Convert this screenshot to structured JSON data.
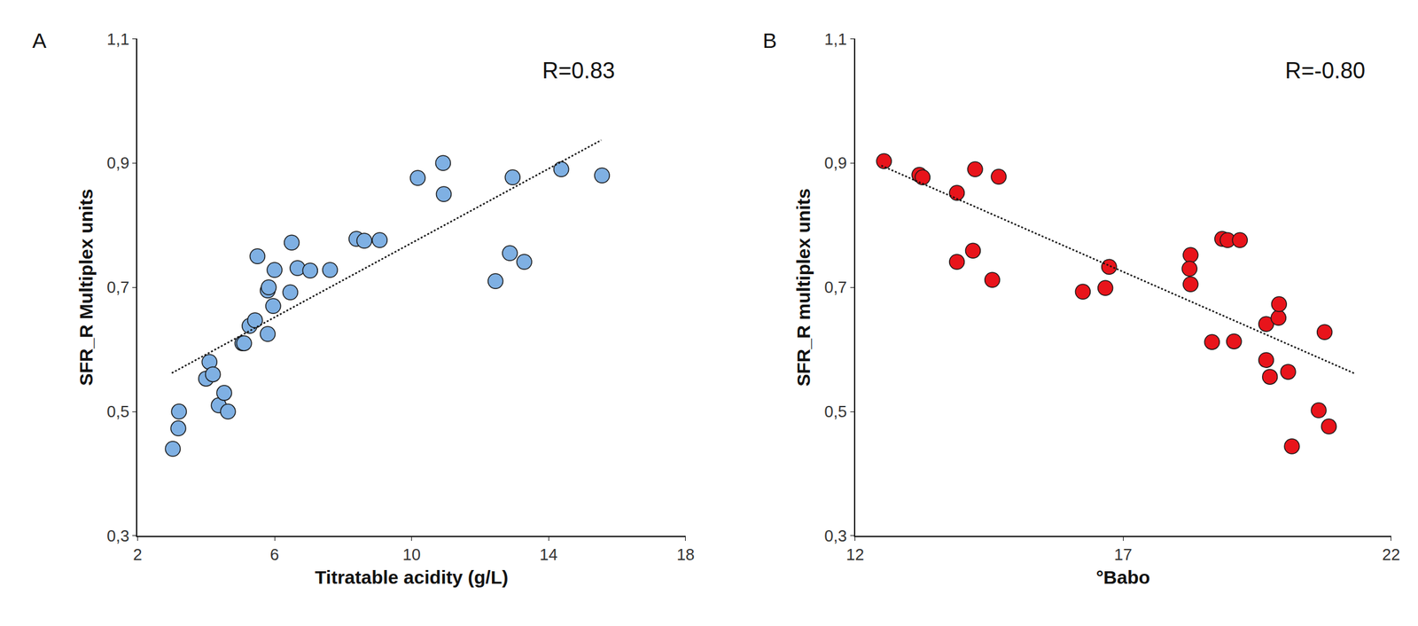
{
  "chart_data": [
    {
      "type": "scatter",
      "panel_label": "A",
      "annotation": "R=0.83",
      "x_label": "Titratable acidity (g/L)",
      "y_label": "SFR_R Multiplex units",
      "x": [
        3.03,
        3.19,
        3.21,
        4.0,
        4.1,
        4.2,
        4.37,
        4.53,
        4.64,
        5.06,
        5.11,
        5.27,
        5.43,
        5.5,
        5.8,
        5.8,
        5.83,
        5.96,
        6.0,
        6.46,
        6.5,
        6.67,
        7.04,
        7.62,
        8.39,
        8.62,
        9.07,
        10.18,
        10.92,
        10.94,
        12.45,
        12.87,
        12.95,
        13.29,
        14.37,
        15.56
      ],
      "values": [
        0.44,
        0.473,
        0.5,
        0.553,
        0.58,
        0.56,
        0.51,
        0.53,
        0.5,
        0.61,
        0.61,
        0.638,
        0.647,
        0.75,
        0.625,
        0.695,
        0.7,
        0.67,
        0.728,
        0.692,
        0.772,
        0.731,
        0.727,
        0.728,
        0.778,
        0.775,
        0.776,
        0.876,
        0.9,
        0.85,
        0.71,
        0.755,
        0.877,
        0.741,
        0.89,
        0.88
      ],
      "color": "#7fb0e3",
      "marker": "circle",
      "trendline": {
        "x": [
          3.0,
          15.54
        ],
        "values": [
          0.562,
          0.937
        ],
        "line_style": "dotted"
      },
      "xlim": [
        2,
        18
      ],
      "xticks": [
        2,
        6,
        10,
        14,
        18
      ],
      "ylim": [
        0.3,
        1.1
      ],
      "yticks": [
        {
          "value": 0.3,
          "label": "0,3"
        },
        {
          "value": 0.5,
          "label": "0,5"
        },
        {
          "value": 0.7,
          "label": "0,7"
        },
        {
          "value": 0.9,
          "label": "0,9"
        },
        {
          "value": 1.1,
          "label": "1,1"
        }
      ],
      "grid": false
    },
    {
      "type": "scatter",
      "panel_label": "B",
      "annotation": "R=-0.80",
      "x_label": "°Babo",
      "y_label": "SFR_R multiplex units",
      "x": [
        12.54,
        13.2,
        13.26,
        13.9,
        14.24,
        14.68,
        13.9,
        14.2,
        14.56,
        16.25,
        16.67,
        16.74,
        18.26,
        18.24,
        18.26,
        18.85,
        18.95,
        19.18,
        18.66,
        19.07,
        19.67,
        19.67,
        19.74,
        20.08,
        19.9,
        19.91,
        20.76,
        20.15,
        20.65,
        20.84
      ],
      "values": [
        0.903,
        0.881,
        0.877,
        0.852,
        0.89,
        0.878,
        0.741,
        0.759,
        0.712,
        0.693,
        0.699,
        0.733,
        0.752,
        0.73,
        0.705,
        0.778,
        0.776,
        0.776,
        0.612,
        0.613,
        0.641,
        0.583,
        0.556,
        0.564,
        0.651,
        0.673,
        0.628,
        0.444,
        0.502,
        0.476
      ],
      "color": "#e8141b",
      "marker": "circle",
      "trendline": {
        "x": [
          12.49,
          21.33
        ],
        "values": [
          0.896,
          0.561
        ],
        "line_style": "dotted"
      },
      "xlim": [
        12,
        22
      ],
      "xticks": [
        12,
        17,
        22
      ],
      "ylim": [
        0.3,
        1.1
      ],
      "yticks": [
        {
          "value": 0.3,
          "label": "0,3"
        },
        {
          "value": 0.5,
          "label": "0,5"
        },
        {
          "value": 0.7,
          "label": "0,7"
        },
        {
          "value": 0.9,
          "label": "0,9"
        },
        {
          "value": 1.1,
          "label": "1,1"
        }
      ],
      "grid": false
    }
  ]
}
